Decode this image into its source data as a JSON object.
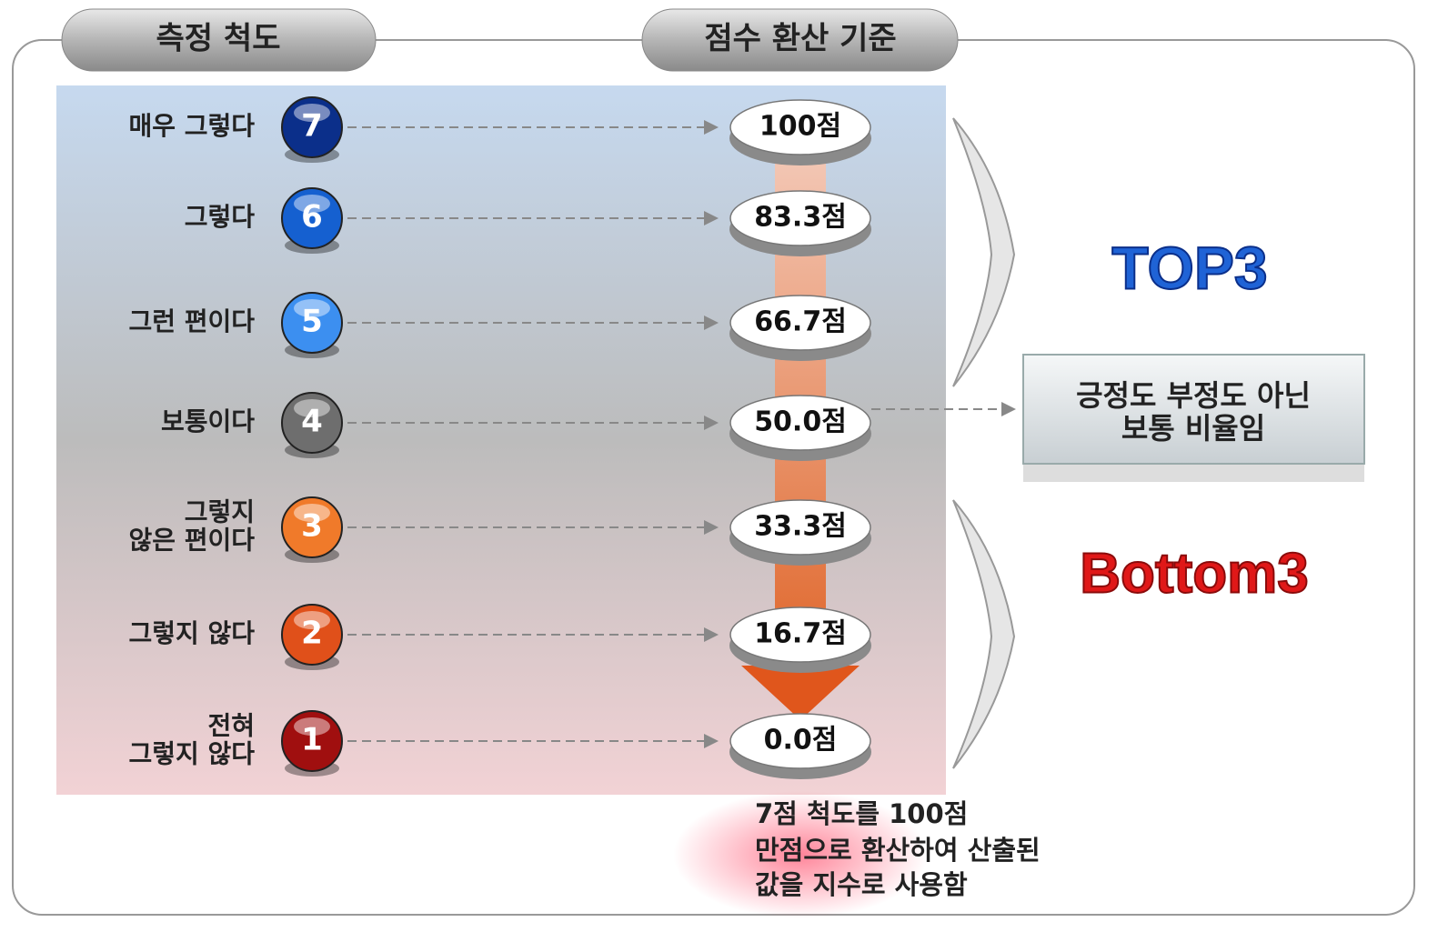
{
  "headers": {
    "scale": "측정 척도",
    "conversion": "점수 환산 기준"
  },
  "rows": [
    {
      "label": [
        "매우 그렇다"
      ],
      "number": "7",
      "score": "100점"
    },
    {
      "label": [
        "그렇다"
      ],
      "number": "6",
      "score": "83.3점"
    },
    {
      "label": [
        "그런 편이다"
      ],
      "number": "5",
      "score": "66.7점"
    },
    {
      "label": [
        "보통이다"
      ],
      "number": "4",
      "score": "50.0점"
    },
    {
      "label": [
        "그렇지",
        "않은 편이다"
      ],
      "number": "3",
      "score": "33.3점"
    },
    {
      "label": [
        "그렇지 않다"
      ],
      "number": "2",
      "score": "16.7점"
    },
    {
      "label": [
        "전혀",
        "그렇지 않다"
      ],
      "number": "1",
      "score": "0.0점"
    }
  ],
  "top": "TOP3",
  "neutral": [
    "긍정도 부정도 아닌",
    "보통 비율임"
  ],
  "bottom": "Bottom3",
  "footnote": [
    "7점 척도를 100점",
    "만점으로 환산하여 산출된",
    "값을 지수로 사용함"
  ]
}
